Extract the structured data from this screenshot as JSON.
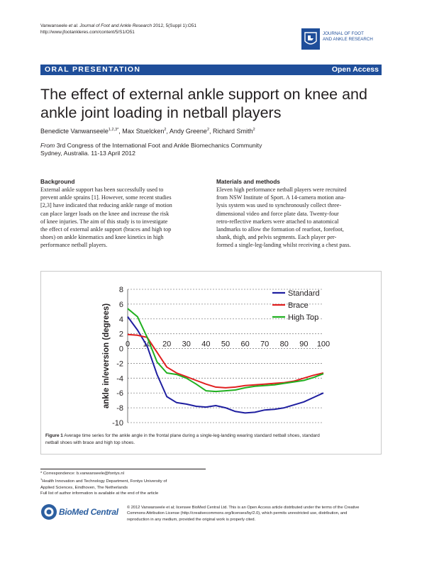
{
  "header": {
    "cite_authors": "Vanwanseele",
    "cite_etal": "et al.",
    "cite_journal": "Journal of Foot and Ankle Research",
    "cite_volume": "2012, 5(Suppl 1):O51",
    "url": "http://www.jfootankleres.com/content/5/S1/O51",
    "journal_name_line1": "JOURNAL OF FOOT",
    "journal_name_line2": "AND ANKLE RESEARCH"
  },
  "banner": {
    "left": "ORAL PRESENTATION",
    "right": "Open Access"
  },
  "title_line1": "The effect of external ankle support on knee and",
  "title_line2": "ankle joint loading in netball players",
  "authors": [
    {
      "name": "Benedicte Vanwanseele",
      "sup": "1,2,3*"
    },
    {
      "name": "Max Stuelcken",
      "sup": "2"
    },
    {
      "name": "Andy Greene",
      "sup": "2"
    },
    {
      "name": "Richard Smith",
      "sup": "2"
    }
  ],
  "from": {
    "label": "From",
    "line1": "3rd Congress of the International Foot and Ankle Biomechanics Community",
    "line2": "Sydney, Australia. 11-13 April 2012"
  },
  "background": {
    "heading": "Background",
    "lines": [
      "External ankle support has been successfully used to",
      "prevent ankle sprains [1]. However, some recent studies",
      "[2,3] have indicated that reducing ankle range of motion",
      "can place larger loads on the knee and increase the risk",
      "of knee injuries. The aim of this study is to investigate",
      "the effect of external ankle support (braces and high top",
      "shoes) on ankle kinematics and knee kinetics in high",
      "performance netball players."
    ]
  },
  "methods": {
    "heading": "Materials and methods",
    "lines": [
      "Eleven high performance netball players were recruited",
      "from NSW Institute of Sport. A 14-camera motion ana-",
      "lysis system was used to synchronously collect three-",
      "dimensional video and force plate data. Twenty-four",
      "retro-reflective markers were attached to anatomical",
      "landmarks to allow the formation of rearfoot, forefoot,",
      "shank, thigh, and pelvis segments. Each player per-",
      "formed a single-leg-landing whilst receiving a chest pass."
    ]
  },
  "chart_data": {
    "type": "line",
    "ylabel": "ankle in/eversion (degrees)",
    "xlabel": "",
    "xlim": [
      0,
      100
    ],
    "ylim": [
      -10,
      8
    ],
    "xticks": [
      "0",
      "10",
      "20",
      "30",
      "40",
      "50",
      "60",
      "70",
      "80",
      "90",
      "100"
    ],
    "yticks": [
      "8",
      "6",
      "4",
      "2",
      "0",
      "-2",
      "-4",
      "-6",
      "-8",
      "-10"
    ],
    "grid": "horizontal dashed",
    "legend_position": "top-right",
    "x": [
      0,
      5,
      10,
      15,
      20,
      25,
      30,
      35,
      40,
      45,
      50,
      55,
      60,
      65,
      70,
      75,
      80,
      85,
      90,
      95,
      100
    ],
    "series": [
      {
        "name": "Standard",
        "color": "#1f1fa0",
        "values": [
          4.3,
          2.5,
          0.3,
          -3.5,
          -6.5,
          -7.3,
          -7.5,
          -7.8,
          -7.9,
          -7.7,
          -8.0,
          -8.5,
          -8.7,
          -8.6,
          -8.3,
          -8.2,
          -8.0,
          -7.6,
          -7.2,
          -6.6,
          -6.0
        ]
      },
      {
        "name": "Brace",
        "color": "#e02020",
        "values": [
          1.9,
          1.8,
          1.5,
          -0.5,
          -2.5,
          -3.3,
          -3.8,
          -4.3,
          -4.8,
          -5.2,
          -5.3,
          -5.2,
          -5.0,
          -4.9,
          -4.8,
          -4.7,
          -4.6,
          -4.4,
          -4.0,
          -3.6,
          -3.3
        ]
      },
      {
        "name": "High Top",
        "color": "#20b020",
        "values": [
          5.4,
          4.3,
          1.5,
          -1.8,
          -3.3,
          -3.5,
          -4.0,
          -4.8,
          -5.7,
          -5.8,
          -5.7,
          -5.6,
          -5.3,
          -5.1,
          -5.0,
          -4.9,
          -4.7,
          -4.5,
          -4.3,
          -3.9,
          -3.4
        ]
      }
    ]
  },
  "caption": {
    "label": "Figure 1",
    "line1": "Average time series for the ankle angle in the frontal plane during a single-leg-landing wearing standard netball shoes, standard",
    "line2": "netball shoes with brace and high top shoes."
  },
  "footnotes": {
    "correspondence": "* Correspondence: b.vanwanseele@fontys.nl",
    "affil_sup": "1",
    "affil_line1": "Health Innovation and Technology Department, Fontys University of",
    "affil_line2": "Applied Sciences, Eindhoven, The Netherlands",
    "full_list": "Full list of author information is available at the end of the article"
  },
  "publisher": {
    "name": "BioMed Central",
    "license_line1": "© 2012 Vanwanseele et al; licensee BioMed Central Ltd. This is an Open Access article distributed under the terms of the Creative",
    "license_line2": "Commons Attribution License (http://creativecommons.org/licenses/by/2.0), which permits unrestricted use, distribution, and",
    "license_line3": "reproduction in any medium, provided the original work is properly cited."
  },
  "colors": {
    "brand_blue": "#1f4e9a"
  }
}
